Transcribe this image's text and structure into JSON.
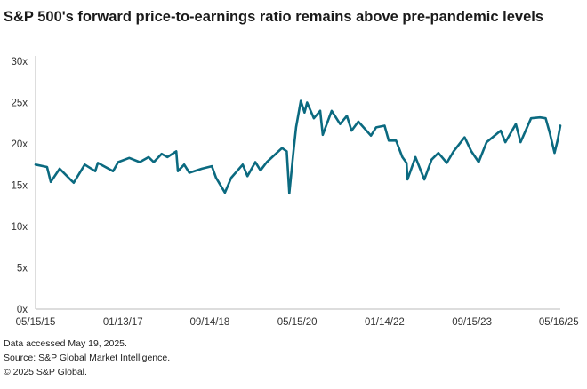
{
  "chart_data": {
    "type": "line",
    "title": "S&P 500's forward price-to-earnings ratio remains above pre-pandemic levels",
    "xlabel": "",
    "ylabel": "",
    "ylim": [
      0,
      30
    ],
    "xlim": [
      2015.37,
      2025.4
    ],
    "yticks": [
      {
        "v": 0,
        "label": "0x"
      },
      {
        "v": 5,
        "label": "5x"
      },
      {
        "v": 10,
        "label": "10x"
      },
      {
        "v": 15,
        "label": "15x"
      },
      {
        "v": 20,
        "label": "20x"
      },
      {
        "v": 25,
        "label": "25x"
      },
      {
        "v": 30,
        "label": "30x"
      }
    ],
    "xticks": [
      {
        "v": 2015.37,
        "label": "05/15/15"
      },
      {
        "v": 2017.04,
        "label": "01/13/17"
      },
      {
        "v": 2018.7,
        "label": "09/14/18"
      },
      {
        "v": 2020.37,
        "label": "05/15/20"
      },
      {
        "v": 2022.04,
        "label": "01/14/22"
      },
      {
        "v": 2023.71,
        "label": "09/15/23"
      },
      {
        "v": 2025.37,
        "label": "05/16/25"
      }
    ],
    "grid": false,
    "series": [
      {
        "name": "S&P 500 forward P/E",
        "color": "#0b6a80",
        "points": [
          [
            2015.37,
            17.5
          ],
          [
            2015.59,
            17.2
          ],
          [
            2015.66,
            15.4
          ],
          [
            2015.83,
            17.0
          ],
          [
            2016.05,
            15.6
          ],
          [
            2016.1,
            15.3
          ],
          [
            2016.31,
            17.5
          ],
          [
            2016.51,
            16.7
          ],
          [
            2016.56,
            17.7
          ],
          [
            2016.85,
            16.7
          ],
          [
            2016.95,
            17.8
          ],
          [
            2017.16,
            18.3
          ],
          [
            2017.36,
            17.8
          ],
          [
            2017.53,
            18.4
          ],
          [
            2017.63,
            17.8
          ],
          [
            2017.78,
            18.8
          ],
          [
            2017.89,
            18.4
          ],
          [
            2018.06,
            19.1
          ],
          [
            2018.09,
            16.7
          ],
          [
            2018.21,
            17.5
          ],
          [
            2018.31,
            16.5
          ],
          [
            2018.55,
            17.0
          ],
          [
            2018.74,
            17.3
          ],
          [
            2018.82,
            15.9
          ],
          [
            2018.99,
            14.1
          ],
          [
            2019.11,
            15.9
          ],
          [
            2019.33,
            17.5
          ],
          [
            2019.42,
            16.1
          ],
          [
            2019.57,
            17.8
          ],
          [
            2019.67,
            16.8
          ],
          [
            2019.79,
            17.8
          ],
          [
            2020.08,
            19.5
          ],
          [
            2020.17,
            19.1
          ],
          [
            2020.22,
            14.0
          ],
          [
            2020.3,
            19.1
          ],
          [
            2020.35,
            22.0
          ],
          [
            2020.44,
            25.2
          ],
          [
            2020.51,
            23.8
          ],
          [
            2020.56,
            25.0
          ],
          [
            2020.69,
            23.1
          ],
          [
            2020.81,
            24.0
          ],
          [
            2020.86,
            21.1
          ],
          [
            2021.03,
            24.0
          ],
          [
            2021.19,
            22.4
          ],
          [
            2021.32,
            23.4
          ],
          [
            2021.41,
            21.6
          ],
          [
            2021.54,
            22.7
          ],
          [
            2021.78,
            21.0
          ],
          [
            2021.88,
            22.0
          ],
          [
            2022.04,
            22.2
          ],
          [
            2022.12,
            20.4
          ],
          [
            2022.26,
            20.4
          ],
          [
            2022.38,
            18.4
          ],
          [
            2022.46,
            17.7
          ],
          [
            2022.48,
            15.7
          ],
          [
            2022.63,
            18.4
          ],
          [
            2022.8,
            15.7
          ],
          [
            2022.94,
            18.1
          ],
          [
            2023.07,
            18.9
          ],
          [
            2023.23,
            17.7
          ],
          [
            2023.36,
            19.1
          ],
          [
            2023.57,
            20.8
          ],
          [
            2023.7,
            19.1
          ],
          [
            2023.84,
            17.8
          ],
          [
            2023.99,
            20.2
          ],
          [
            2024.26,
            21.6
          ],
          [
            2024.35,
            20.2
          ],
          [
            2024.55,
            22.4
          ],
          [
            2024.64,
            20.2
          ],
          [
            2024.84,
            23.1
          ],
          [
            2025.01,
            23.2
          ],
          [
            2025.12,
            23.1
          ],
          [
            2025.2,
            21.3
          ],
          [
            2025.29,
            18.9
          ],
          [
            2025.35,
            20.5
          ],
          [
            2025.4,
            22.2
          ]
        ]
      }
    ]
  },
  "footer": {
    "line1": "Data accessed May 19, 2025.",
    "line2": "Source: S&P Global Market Intelligence.",
    "line3": "© 2025 S&P Global."
  }
}
